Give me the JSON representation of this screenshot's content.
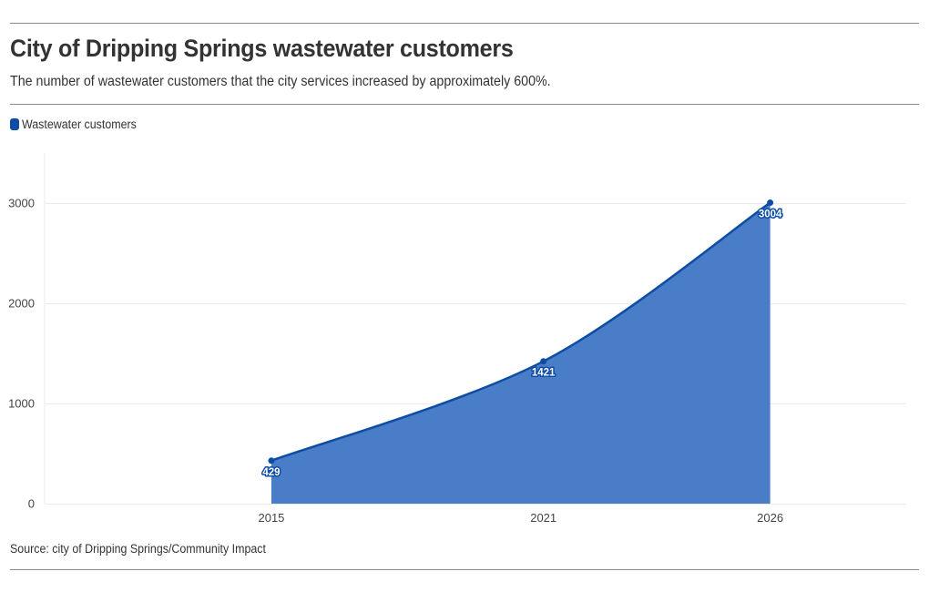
{
  "header": {
    "title": "City of Dripping Springs wastewater customers",
    "subtitle": "The number of wastewater customers that the city services increased by approximately 600%."
  },
  "footer": {
    "source": "Source: city of Dripping Springs/Community Impact"
  },
  "colors": {
    "series_line": "#0e4da4",
    "series_fill": "#3a72c2",
    "gridline": "#ebebeb",
    "rule": "#8a8a8a"
  },
  "chart_data": {
    "type": "area",
    "title": "City of Dripping Springs wastewater customers",
    "subtitle": "The number of wastewater customers that the city services increased by approximately 600%.",
    "xlabel": "",
    "ylabel": "",
    "x": [
      "2015",
      "2021",
      "2026"
    ],
    "series": [
      {
        "name": "Wastewater customers",
        "values": [
          429,
          1421,
          3004
        ],
        "data_labels": [
          "429",
          "1421",
          "3004"
        ]
      }
    ],
    "yticks": [
      0,
      1000,
      2000,
      3000
    ],
    "ytick_labels": [
      "0",
      "1000",
      "2000",
      "3000"
    ],
    "ylim": [
      0,
      3500
    ],
    "xlim": [
      2010,
      2029
    ],
    "grid": true,
    "legend": "top-left"
  }
}
